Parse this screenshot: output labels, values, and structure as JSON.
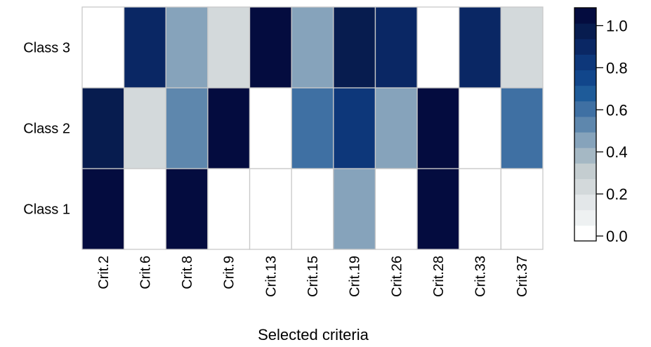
{
  "chart_data": {
    "type": "heatmap",
    "title": "",
    "xlabel": "Selected criteria",
    "ylabel": "",
    "x": [
      "Crit.2",
      "Crit.6",
      "Crit.8",
      "Crit.9",
      "Crit.13",
      "Crit.15",
      "Crit.19",
      "Crit.26",
      "Crit.28",
      "Crit.33",
      "Crit.37"
    ],
    "y": [
      "Class 1",
      "Class 2",
      "Class 3"
    ],
    "values": [
      [
        1.0,
        0.0,
        1.0,
        0.0,
        0.0,
        0.0,
        0.4,
        0.0,
        1.0,
        0.0,
        0.0
      ],
      [
        0.95,
        0.2,
        0.5,
        1.0,
        0.0,
        0.6,
        0.75,
        0.4,
        1.0,
        0.0,
        0.6
      ],
      [
        0.0,
        0.85,
        0.4,
        0.2,
        1.0,
        0.4,
        0.95,
        0.85,
        0.0,
        0.85,
        0.2
      ]
    ],
    "colorbar": {
      "range": [
        0,
        1
      ],
      "ticks": [
        "0.0",
        "0.2",
        "0.4",
        "0.6",
        "0.8",
        "1.0"
      ],
      "colors": [
        "#ffffff",
        "#eef1f2",
        "#e3e7e9",
        "#d3d9db",
        "#c4cdd0",
        "#a5b8c4",
        "#86a3bb",
        "#5e87ad",
        "#3f70a3",
        "#1e5b99",
        "#11468b",
        "#0d377a",
        "#0a2764",
        "#071c4f",
        "#040c3f"
      ],
      "legend_position": "right"
    },
    "grid_color": "#c9c9c9"
  }
}
